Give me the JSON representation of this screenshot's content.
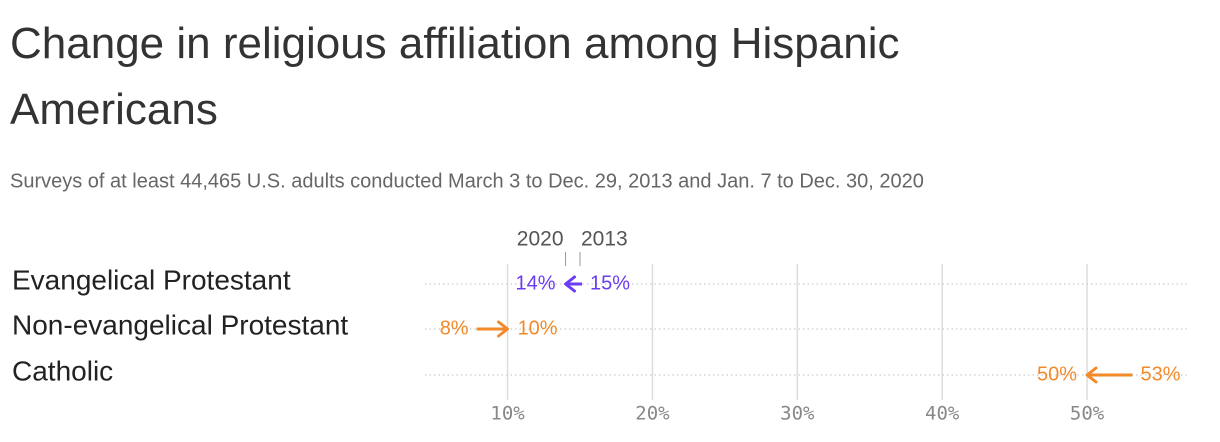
{
  "chart_data": {
    "type": "arrow",
    "title": "Change in religious affiliation among Hispanic Americans",
    "subtitle": "Surveys of at least 44,465 U.S. adults conducted March 3 to Dec. 29, 2013 and Jan. 7 to Dec. 30, 2020",
    "categories": [
      "Evangelical Protestant",
      "Non-evangelical Protestant",
      "Catholic"
    ],
    "colors": [
      "#6b3cf2",
      "#f28a2a",
      "#f28a2a"
    ],
    "series": [
      {
        "name": "2013",
        "values": [
          15,
          8,
          53
        ],
        "value_labels": [
          "15%",
          "8%",
          "53%"
        ]
      },
      {
        "name": "2020",
        "values": [
          14,
          10,
          50
        ],
        "value_labels": [
          "14%",
          "10%",
          "50%"
        ]
      }
    ],
    "xlim": [
      4.3,
      56.9
    ],
    "xticks": [
      {
        "value": 10,
        "label": "10%"
      },
      {
        "value": 20,
        "label": "20%"
      },
      {
        "value": 30,
        "label": "30%"
      },
      {
        "value": 40,
        "label": "40%"
      },
      {
        "value": 50,
        "label": "50%"
      }
    ],
    "grid": true
  }
}
